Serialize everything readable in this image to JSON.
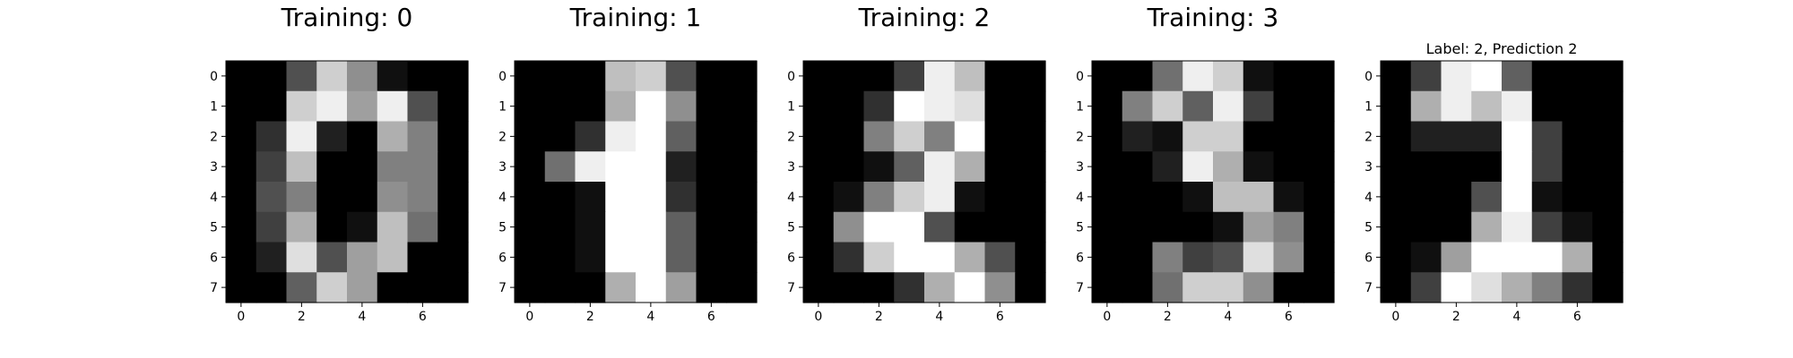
{
  "figure": {
    "background": "#ffffff",
    "colormap": "gray",
    "value_range": [
      0,
      16
    ]
  },
  "chart_data": [
    {
      "type": "heatmap",
      "title": "Training: 0",
      "xticks": [
        0,
        2,
        4,
        6
      ],
      "yticks": [
        0,
        1,
        2,
        3,
        4,
        5,
        6,
        7
      ],
      "values": [
        [
          0,
          0,
          5,
          13,
          9,
          1,
          0,
          0
        ],
        [
          0,
          0,
          13,
          15,
          10,
          15,
          5,
          0
        ],
        [
          0,
          3,
          15,
          2,
          0,
          11,
          8,
          0
        ],
        [
          0,
          4,
          12,
          0,
          0,
          8,
          8,
          0
        ],
        [
          0,
          5,
          8,
          0,
          0,
          9,
          8,
          0
        ],
        [
          0,
          4,
          11,
          0,
          1,
          12,
          7,
          0
        ],
        [
          0,
          2,
          14,
          5,
          10,
          12,
          0,
          0
        ],
        [
          0,
          0,
          6,
          13,
          10,
          0,
          0,
          0
        ]
      ]
    },
    {
      "type": "heatmap",
      "title": "Training: 1",
      "xticks": [
        0,
        2,
        4,
        6
      ],
      "yticks": [
        0,
        1,
        2,
        3,
        4,
        5,
        6,
        7
      ],
      "values": [
        [
          0,
          0,
          0,
          12,
          13,
          5,
          0,
          0
        ],
        [
          0,
          0,
          0,
          11,
          16,
          9,
          0,
          0
        ],
        [
          0,
          0,
          3,
          15,
          16,
          6,
          0,
          0
        ],
        [
          0,
          7,
          15,
          16,
          16,
          2,
          0,
          0
        ],
        [
          0,
          0,
          1,
          16,
          16,
          3,
          0,
          0
        ],
        [
          0,
          0,
          1,
          16,
          16,
          6,
          0,
          0
        ],
        [
          0,
          0,
          1,
          16,
          16,
          6,
          0,
          0
        ],
        [
          0,
          0,
          0,
          11,
          16,
          10,
          0,
          0
        ]
      ]
    },
    {
      "type": "heatmap",
      "title": "Training: 2",
      "xticks": [
        0,
        2,
        4,
        6
      ],
      "yticks": [
        0,
        1,
        2,
        3,
        4,
        5,
        6,
        7
      ],
      "values": [
        [
          0,
          0,
          0,
          4,
          15,
          12,
          0,
          0
        ],
        [
          0,
          0,
          3,
          16,
          15,
          14,
          0,
          0
        ],
        [
          0,
          0,
          8,
          13,
          8,
          16,
          0,
          0
        ],
        [
          0,
          0,
          1,
          6,
          15,
          11,
          0,
          0
        ],
        [
          0,
          1,
          8,
          13,
          15,
          1,
          0,
          0
        ],
        [
          0,
          9,
          16,
          16,
          5,
          0,
          0,
          0
        ],
        [
          0,
          3,
          13,
          16,
          16,
          11,
          5,
          0
        ],
        [
          0,
          0,
          0,
          3,
          11,
          16,
          9,
          0
        ]
      ]
    },
    {
      "type": "heatmap",
      "title": "Training: 3",
      "xticks": [
        0,
        2,
        4,
        6
      ],
      "yticks": [
        0,
        1,
        2,
        3,
        4,
        5,
        6,
        7
      ],
      "values": [
        [
          0,
          0,
          7,
          15,
          13,
          1,
          0,
          0
        ],
        [
          0,
          8,
          13,
          6,
          15,
          4,
          0,
          0
        ],
        [
          0,
          2,
          1,
          13,
          13,
          0,
          0,
          0
        ],
        [
          0,
          0,
          2,
          15,
          11,
          1,
          0,
          0
        ],
        [
          0,
          0,
          0,
          1,
          12,
          12,
          1,
          0
        ],
        [
          0,
          0,
          0,
          0,
          1,
          10,
          8,
          0
        ],
        [
          0,
          0,
          8,
          4,
          5,
          14,
          9,
          0
        ],
        [
          0,
          0,
          7,
          13,
          13,
          9,
          0,
          0
        ]
      ]
    },
    {
      "type": "heatmap",
      "title": "Label: 2, Prediction 2",
      "xticks": [
        0,
        2,
        4,
        6
      ],
      "yticks": [
        0,
        1,
        2,
        3,
        4,
        5,
        6,
        7
      ],
      "values": [
        [
          0,
          4,
          15,
          16,
          6,
          0,
          0,
          0
        ],
        [
          0,
          11,
          15,
          12,
          15,
          0,
          0,
          0
        ],
        [
          0,
          2,
          2,
          2,
          16,
          4,
          0,
          0
        ],
        [
          0,
          0,
          0,
          0,
          16,
          4,
          0,
          0
        ],
        [
          0,
          0,
          0,
          5,
          16,
          1,
          0,
          0
        ],
        [
          0,
          0,
          0,
          11,
          15,
          4,
          1,
          0
        ],
        [
          0,
          1,
          10,
          16,
          16,
          16,
          11,
          0
        ],
        [
          0,
          4,
          16,
          14,
          11,
          8,
          3,
          0
        ]
      ]
    }
  ]
}
